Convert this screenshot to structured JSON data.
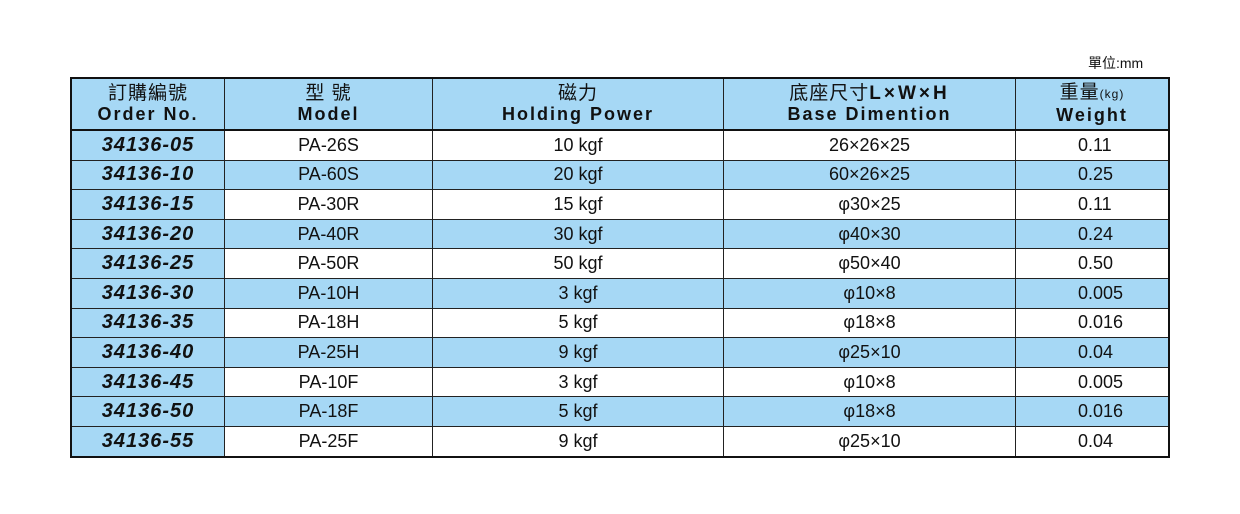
{
  "unit_label": "單位:mm",
  "headers": [
    {
      "zh": "訂購編號",
      "en": "Order No."
    },
    {
      "zh": "型 號",
      "en": "Model"
    },
    {
      "zh": "磁力",
      "en": "Holding Power"
    },
    {
      "zh": "底座尺寸",
      "zh_suffix": "L×W×H",
      "en": "Base Dimention"
    },
    {
      "zh": "重量",
      "zh_suffix": "(kg)",
      "en": "Weight"
    }
  ],
  "rows": [
    [
      "34136-05",
      "PA-26S",
      "10 kgf",
      "26×26×25",
      "0.11"
    ],
    [
      "34136-10",
      "PA-60S",
      "20 kgf",
      "60×26×25",
      "0.25"
    ],
    [
      "34136-15",
      "PA-30R",
      "15 kgf",
      "φ30×25",
      "0.11"
    ],
    [
      "34136-20",
      "PA-40R",
      "30 kgf",
      "φ40×30",
      "0.24"
    ],
    [
      "34136-25",
      "PA-50R",
      "50 kgf",
      "φ50×40",
      "0.50"
    ],
    [
      "34136-30",
      "PA-10H",
      "3 kgf",
      "φ10×8",
      "0.005"
    ],
    [
      "34136-35",
      "PA-18H",
      "5 kgf",
      "φ18×8",
      "0.016"
    ],
    [
      "34136-40",
      "PA-25H",
      "9 kgf",
      "φ25×10",
      "0.04"
    ],
    [
      "34136-45",
      "PA-10F",
      "3 kgf",
      "φ10×8",
      "0.005"
    ],
    [
      "34136-50",
      "PA-18F",
      "5 kgf",
      "φ18×8",
      "0.016"
    ],
    [
      "34136-55",
      "PA-25F",
      "9 kgf",
      "φ25×10",
      "0.04"
    ]
  ],
  "colors": {
    "header_bg": "#a6d8f5",
    "alt_row_bg": "#a6d8f5"
  }
}
